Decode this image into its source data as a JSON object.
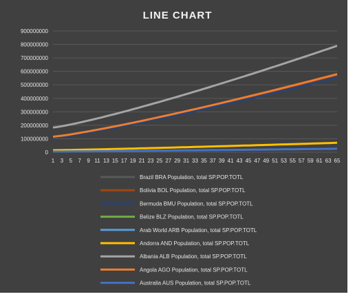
{
  "chart_data": {
    "type": "line",
    "title": "LINE CHART",
    "xlabel": "",
    "ylabel": "",
    "x": [
      1,
      2,
      3,
      4,
      5,
      6,
      7,
      8,
      9,
      10,
      11,
      12,
      13,
      14,
      15,
      16,
      17,
      18,
      19,
      20,
      21,
      22,
      23,
      24,
      25,
      26,
      27,
      28,
      29,
      30,
      31,
      32,
      33,
      34,
      35,
      36,
      37,
      38,
      39,
      40,
      41,
      42,
      43,
      44,
      45,
      46,
      47,
      48,
      49,
      50,
      51,
      52,
      53,
      54,
      55,
      56,
      57,
      58,
      59,
      60,
      61,
      62,
      63,
      64,
      65
    ],
    "x_tick_labels": [
      "1",
      "3",
      "5",
      "7",
      "9",
      "11",
      "13",
      "15",
      "17",
      "19",
      "21",
      "23",
      "25",
      "27",
      "29",
      "31",
      "33",
      "35",
      "37",
      "39",
      "41",
      "43",
      "45",
      "47",
      "49",
      "51",
      "53",
      "55",
      "57",
      "59",
      "61",
      "63",
      "65"
    ],
    "ylim": [
      0,
      900000000
    ],
    "y_ticks": [
      0,
      100000000,
      200000000,
      300000000,
      400000000,
      500000000,
      600000000,
      700000000,
      800000000,
      900000000
    ],
    "y_tick_labels": [
      "0",
      "100000000",
      "200000000",
      "300000000",
      "400000000",
      "500000000",
      "600000000",
      "700000000",
      "800000000",
      "900000000"
    ],
    "grid": true,
    "legend_position": "bottom",
    "series": [
      {
        "name": "Brazil BRA Population, total SP.POP.TOTL",
        "color": "#595959",
        "start": 0,
        "end": 0
      },
      {
        "name": "Bolivia BOL Population, total SP.POP.TOTL",
        "color": "#9e480e",
        "start": 112000000,
        "end": 575000000
      },
      {
        "name": "Bermuda BMU Population, total SP.POP.TOTL",
        "color": "#264478",
        "start": 108000000,
        "end": 555000000
      },
      {
        "name": "Belize BLZ Population, total SP.POP.TOTL",
        "color": "#70ad47",
        "start": 0,
        "end": 0
      },
      {
        "name": "Arab World ARB Population, total SP.POP.TOTL",
        "color": "#5b9bd5",
        "start": 0,
        "end": 0
      },
      {
        "name": "Andorra AND Population, total SP.POP.TOTL",
        "color": "#ffc000",
        "start": 15000000,
        "end": 70000000
      },
      {
        "name": "Albania ALB Population, total SP.POP.TOTL",
        "color": "#a5a5a5",
        "start": 183000000,
        "end": 790000000
      },
      {
        "name": "Angola AGO Population, total SP.POP.TOTL",
        "color": "#ed7d31",
        "start": 115000000,
        "end": 580000000
      },
      {
        "name": "Australia AUS Population, total SP.POP.TOTL",
        "color": "#4472c4",
        "start": 5000000,
        "end": 26000000
      }
    ]
  }
}
